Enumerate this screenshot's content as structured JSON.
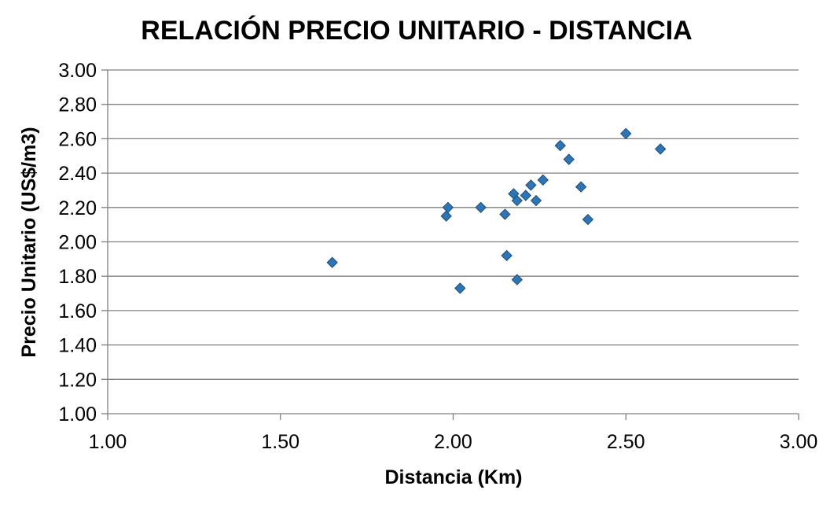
{
  "chart_data": {
    "type": "scatter",
    "title": "RELACIÓN PRECIO UNITARIO - DISTANCIA",
    "xlabel": "Distancia (Km)",
    "ylabel": "Precio Unitario (US$/m3)",
    "xlim": [
      1.0,
      3.0
    ],
    "ylim": [
      1.0,
      3.0
    ],
    "x_ticks": [
      "1.00",
      "1.50",
      "2.00",
      "2.50",
      "3.00"
    ],
    "y_ticks": [
      "1.00",
      "1.20",
      "1.40",
      "1.60",
      "1.80",
      "2.00",
      "2.20",
      "2.40",
      "2.60",
      "2.80",
      "3.00"
    ],
    "grid": "horizontal",
    "legend": "none",
    "marker": "diamond",
    "colors": {
      "marker_fill": "#2E75B6",
      "marker_edge": "#1F4E79",
      "grid": "#808080",
      "axis": "#808080"
    },
    "series": [
      {
        "points": [
          {
            "x": 1.65,
            "y": 1.88
          },
          {
            "x": 1.98,
            "y": 2.15
          },
          {
            "x": 1.985,
            "y": 2.2
          },
          {
            "x": 2.02,
            "y": 1.73
          },
          {
            "x": 2.08,
            "y": 2.2
          },
          {
            "x": 2.15,
            "y": 2.16
          },
          {
            "x": 2.155,
            "y": 1.92
          },
          {
            "x": 2.175,
            "y": 2.28
          },
          {
            "x": 2.185,
            "y": 2.24
          },
          {
            "x": 2.185,
            "y": 1.78
          },
          {
            "x": 2.21,
            "y": 2.27
          },
          {
            "x": 2.225,
            "y": 2.33
          },
          {
            "x": 2.24,
            "y": 2.24
          },
          {
            "x": 2.26,
            "y": 2.36
          },
          {
            "x": 2.31,
            "y": 2.56
          },
          {
            "x": 2.335,
            "y": 2.48
          },
          {
            "x": 2.37,
            "y": 2.32
          },
          {
            "x": 2.39,
            "y": 2.13
          },
          {
            "x": 2.5,
            "y": 2.63
          },
          {
            "x": 2.6,
            "y": 2.54
          }
        ]
      }
    ]
  }
}
